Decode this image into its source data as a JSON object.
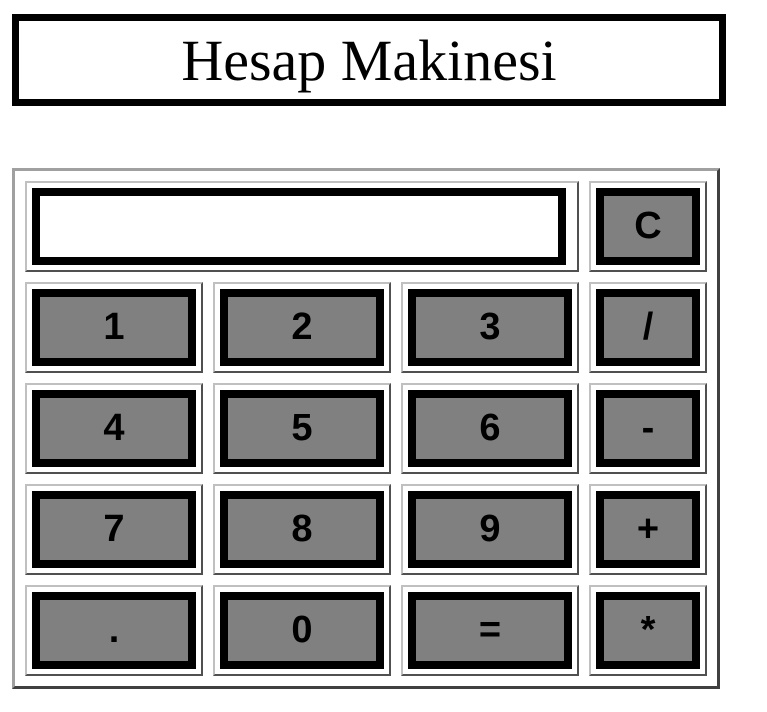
{
  "title": "Hesap Makinesi",
  "display": {
    "value": ""
  },
  "keys": {
    "clear": "C",
    "one": "1",
    "two": "2",
    "three": "3",
    "divide": "/",
    "four": "4",
    "five": "5",
    "six": "6",
    "subtract": "-",
    "seven": "7",
    "eight": "8",
    "nine": "9",
    "add": "+",
    "decimal": ".",
    "zero": "0",
    "equals": "=",
    "multiply": "*"
  }
}
